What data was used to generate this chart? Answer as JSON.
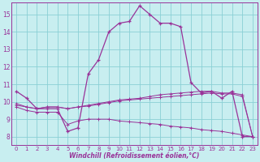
{
  "xlabel": "Windchill (Refroidissement éolien,°C)",
  "bg_color": "#c8eef0",
  "grid_color": "#8ad0d5",
  "line_color": "#993399",
  "xlim": [
    -0.5,
    23.5
  ],
  "ylim": [
    7.5,
    15.7
  ],
  "xticks": [
    0,
    1,
    2,
    3,
    4,
    5,
    6,
    7,
    8,
    9,
    10,
    11,
    12,
    13,
    14,
    15,
    16,
    17,
    18,
    19,
    20,
    21,
    22,
    23
  ],
  "yticks": [
    8,
    9,
    10,
    11,
    12,
    13,
    14,
    15
  ],
  "line1_x": [
    0,
    1,
    2,
    3,
    4,
    5,
    6,
    7,
    8,
    9,
    10,
    11,
    12,
    13,
    14,
    15,
    16,
    17,
    18,
    19,
    20,
    21,
    22,
    23
  ],
  "line1_y": [
    10.6,
    10.2,
    9.6,
    9.6,
    9.6,
    8.3,
    8.5,
    11.6,
    12.4,
    14.0,
    14.5,
    14.6,
    15.5,
    15.0,
    14.5,
    14.5,
    14.3,
    11.1,
    10.5,
    10.6,
    10.2,
    10.6,
    8.0,
    8.0
  ],
  "line2_x": [
    0,
    1,
    2,
    3,
    4,
    5,
    6,
    7,
    8,
    9,
    10,
    11,
    12,
    13,
    14,
    15,
    16,
    17,
    18,
    19,
    20,
    21,
    22,
    23
  ],
  "line2_y": [
    9.9,
    9.7,
    9.6,
    9.7,
    9.7,
    9.6,
    9.7,
    9.8,
    9.9,
    10.0,
    10.1,
    10.15,
    10.2,
    10.3,
    10.4,
    10.45,
    10.5,
    10.55,
    10.6,
    10.6,
    10.5,
    10.5,
    10.4,
    8.0
  ],
  "line3_x": [
    0,
    1,
    2,
    3,
    4,
    5,
    6,
    7,
    8,
    9,
    10,
    11,
    12,
    13,
    14,
    15,
    16,
    17,
    18,
    19,
    20,
    21,
    22,
    23
  ],
  "line3_y": [
    9.8,
    9.7,
    9.6,
    9.7,
    9.7,
    9.6,
    9.7,
    9.75,
    9.85,
    9.95,
    10.05,
    10.1,
    10.15,
    10.2,
    10.25,
    10.3,
    10.35,
    10.4,
    10.45,
    10.5,
    10.45,
    10.45,
    10.3,
    8.0
  ],
  "line4_x": [
    0,
    1,
    2,
    3,
    4,
    5,
    6,
    7,
    8,
    9,
    10,
    11,
    12,
    13,
    14,
    15,
    16,
    17,
    18,
    19,
    20,
    21,
    22,
    23
  ],
  "line4_y": [
    9.7,
    9.5,
    9.4,
    9.4,
    9.4,
    8.7,
    8.9,
    9.0,
    9.0,
    9.0,
    8.9,
    8.85,
    8.8,
    8.75,
    8.7,
    8.6,
    8.55,
    8.5,
    8.4,
    8.35,
    8.3,
    8.2,
    8.1,
    8.0
  ]
}
